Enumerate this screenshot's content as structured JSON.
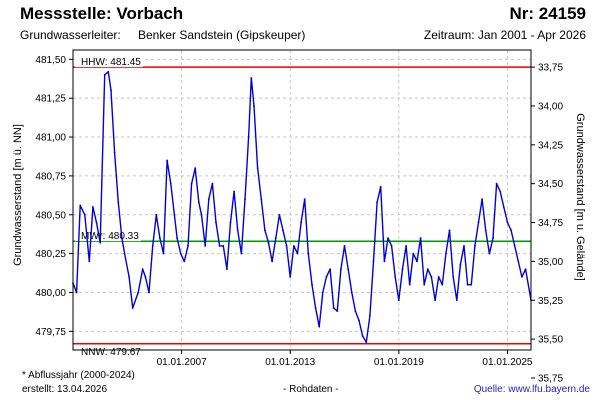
{
  "header": {
    "station": "Messstelle: Vorbach",
    "number": "Nr: 24159",
    "aquifer_label": "Grundwasserleiter:",
    "aquifer_value": "Benker Sandstein (Gipskeuper)",
    "period": "Zeitraum: Jan 2001 - Apr 2026"
  },
  "footer": {
    "footnote": "* Abflussjahr (2000-2024)",
    "created": "erstellt:  13.04.2026",
    "raw": "- Rohdaten -",
    "source_label": "Quelle:",
    "source_url": "www.lfu.bayern.de"
  },
  "colors": {
    "series": "#0000dd",
    "extreme": "#ee0000",
    "mean": "#009900",
    "grid": "#c8c8c8",
    "frame": "#000000"
  },
  "chart_data": {
    "type": "line",
    "title": "Messstelle: Vorbach",
    "ylabel": "Grundwasserstand [m ü. NN]",
    "y2label": "Grundwasserstand [m u. Gelände]",
    "xlim": [
      2001.0,
      2026.3
    ],
    "ylim": [
      479.63,
      481.56
    ],
    "y2_offset": 515.2,
    "y2_inverted": true,
    "grid": true,
    "yticks": [
      479.75,
      480.0,
      480.25,
      480.5,
      480.75,
      481.0,
      481.25,
      481.5
    ],
    "yticklabels": [
      "479,75",
      "480,00",
      "480,25",
      "480,50",
      "480,75",
      "481,00",
      "481,25",
      "481,50"
    ],
    "y2ticks": [
      33.75,
      34.0,
      34.25,
      34.5,
      34.75,
      35.0,
      35.25,
      35.5,
      35.75
    ],
    "y2ticklabels": [
      "33,75",
      "34,00",
      "34,25",
      "34,50",
      "34,75",
      "35,00",
      "35,25",
      "35,50",
      "35,75"
    ],
    "xticks": [
      2007.0,
      2013.0,
      2019.0,
      2025.0
    ],
    "xticklabels": [
      "01.01.2007",
      "01.01.2013",
      "01.01.2019",
      "01.01.2025"
    ],
    "reference_lines": [
      {
        "name": "HHW",
        "label": "HHW: 481.45",
        "value": 481.45,
        "kind": "extreme"
      },
      {
        "name": "MW",
        "label": "MW*: 480.33",
        "value": 480.33,
        "kind": "mean"
      },
      {
        "name": "NNW",
        "label": "NNW: 479.67",
        "value": 479.67,
        "kind": "extreme"
      }
    ],
    "series": [
      {
        "name": "Grundwasserstand",
        "x": [
          2001.0,
          2001.2,
          2001.4,
          2001.65,
          2001.9,
          2002.1,
          2002.3,
          2002.5,
          2002.75,
          2002.95,
          2003.1,
          2003.3,
          2003.5,
          2003.7,
          2003.85,
          2004.1,
          2004.3,
          2004.6,
          2004.85,
          2005.0,
          2005.2,
          2005.4,
          2005.6,
          2005.8,
          2006.0,
          2006.2,
          2006.4,
          2006.6,
          2006.75,
          2006.95,
          2007.15,
          2007.35,
          2007.55,
          2007.75,
          2007.95,
          2008.1,
          2008.3,
          2008.5,
          2008.7,
          2008.9,
          2009.1,
          2009.3,
          2009.5,
          2009.7,
          2009.9,
          2010.1,
          2010.3,
          2010.5,
          2010.7,
          2010.85,
          2011.0,
          2011.2,
          2011.4,
          2011.6,
          2011.8,
          2012.0,
          2012.2,
          2012.4,
          2012.6,
          2012.8,
          2013.0,
          2013.2,
          2013.4,
          2013.6,
          2013.8,
          2014.0,
          2014.2,
          2014.4,
          2014.6,
          2014.8,
          2015.0,
          2015.2,
          2015.4,
          2015.6,
          2015.8,
          2016.0,
          2016.2,
          2016.4,
          2016.6,
          2016.8,
          2017.0,
          2017.2,
          2017.4,
          2017.6,
          2017.8,
          2018.0,
          2018.2,
          2018.4,
          2018.6,
          2018.8,
          2019.0,
          2019.2,
          2019.4,
          2019.6,
          2019.8,
          2020.0,
          2020.2,
          2020.4,
          2020.6,
          2020.8,
          2021.0,
          2021.2,
          2021.4,
          2021.6,
          2021.8,
          2022.0,
          2022.2,
          2022.4,
          2022.6,
          2022.8,
          2023.0,
          2023.2,
          2023.4,
          2023.6,
          2023.8,
          2024.0,
          2024.2,
          2024.4,
          2024.6,
          2024.8,
          2025.0,
          2025.2,
          2025.4,
          2025.6,
          2025.8,
          2026.0,
          2026.3
        ],
        "values": [
          480.06,
          480.0,
          480.56,
          480.5,
          480.2,
          480.55,
          480.45,
          480.32,
          481.4,
          481.42,
          481.3,
          480.9,
          480.58,
          480.35,
          480.25,
          480.1,
          479.9,
          480.0,
          480.15,
          480.1,
          480.0,
          480.3,
          480.5,
          480.35,
          480.25,
          480.85,
          480.7,
          480.5,
          480.35,
          480.25,
          480.2,
          480.3,
          480.7,
          480.8,
          480.58,
          480.5,
          480.3,
          480.6,
          480.7,
          480.45,
          480.3,
          480.3,
          480.15,
          480.45,
          480.65,
          480.4,
          480.25,
          480.6,
          481.0,
          481.38,
          481.2,
          480.8,
          480.6,
          480.4,
          480.32,
          480.2,
          480.35,
          480.5,
          480.4,
          480.3,
          480.1,
          480.3,
          480.25,
          480.45,
          480.6,
          480.25,
          480.05,
          479.9,
          479.78,
          480.0,
          480.1,
          480.15,
          479.9,
          479.88,
          480.15,
          480.3,
          480.15,
          480.0,
          479.88,
          479.82,
          479.72,
          479.68,
          479.85,
          480.2,
          480.58,
          480.68,
          480.2,
          480.35,
          480.3,
          480.1,
          479.95,
          480.15,
          480.3,
          480.05,
          480.25,
          480.2,
          480.35,
          480.05,
          480.15,
          480.1,
          479.95,
          480.1,
          480.05,
          480.25,
          480.4,
          480.1,
          479.95,
          480.18,
          480.3,
          480.05,
          480.05,
          480.3,
          480.45,
          480.6,
          480.4,
          480.25,
          480.35,
          480.7,
          480.65,
          480.55,
          480.45,
          480.4,
          480.3,
          480.2,
          480.1,
          480.15,
          479.95
        ]
      }
    ]
  }
}
